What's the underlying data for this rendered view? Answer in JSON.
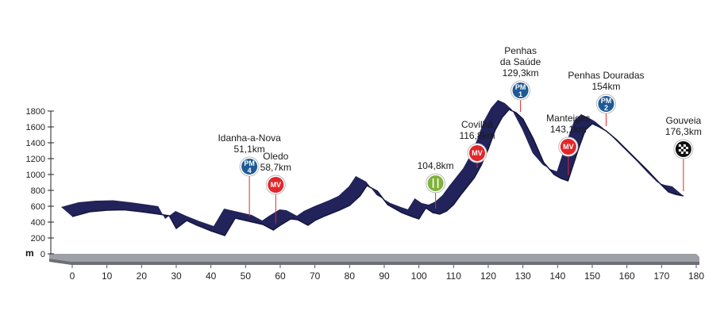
{
  "chart_data": {
    "type": "area",
    "title": "",
    "xlabel": "",
    "ylabel": "m",
    "xlim": [
      0,
      180
    ],
    "ylim": [
      0,
      1800
    ],
    "xticks": [
      "0",
      "10",
      "20",
      "30",
      "40",
      "50",
      "60",
      "70",
      "80",
      "90",
      "100",
      "110",
      "120",
      "130",
      "140",
      "150",
      "160",
      "170",
      "180"
    ],
    "yticks": [
      "0",
      "200",
      "400",
      "600",
      "800",
      "1000",
      "1200",
      "1400",
      "1600",
      "1800"
    ],
    "colors": {
      "profile": "#22235a",
      "profile_dark": "#14153c",
      "base_top": "#9ea0a7",
      "base_side": "#6d6e76",
      "mv": "#e3262b",
      "pm": "#1f5a95",
      "feed": "#80b23a"
    },
    "series": [
      {
        "x": [
          0,
          5,
          10,
          15,
          20,
          25,
          28,
          30,
          33,
          36,
          40,
          44,
          47,
          50,
          52,
          55,
          58,
          60,
          63,
          65,
          68,
          70,
          73,
          77,
          80,
          83,
          85,
          88,
          91,
          95,
          98,
          100,
          102,
          104,
          106,
          108,
          110,
          112,
          114,
          116,
          118,
          120,
          122,
          124,
          126,
          128,
          130,
          133,
          136,
          139,
          141,
          143,
          146,
          148,
          150,
          152,
          154,
          157,
          160,
          163,
          166,
          169,
          172,
          174,
          176.3
        ],
        "y": [
          470,
          530,
          550,
          555,
          530,
          500,
          480,
          320,
          420,
          360,
          290,
          230,
          450,
          420,
          400,
          370,
          300,
          360,
          440,
          430,
          360,
          420,
          480,
          550,
          610,
          730,
          860,
          790,
          620,
          520,
          470,
          440,
          580,
          520,
          500,
          540,
          620,
          740,
          850,
          960,
          1120,
          1320,
          1560,
          1720,
          1820,
          1780,
          1700,
          1450,
          1150,
          1000,
          950,
          920,
          1320,
          1560,
          1640,
          1600,
          1550,
          1440,
          1310,
          1180,
          1050,
          910,
          780,
          750,
          730
        ]
      }
    ],
    "annotations": [
      {
        "type": "pm",
        "badge_top": "PM",
        "badge_num": "4",
        "x": 51.1,
        "lines": [
          "Idanha-a-Nova",
          "51,1km"
        ]
      },
      {
        "type": "mv",
        "badge_top": "MV",
        "x": 58.7,
        "lines": [
          "Oledo",
          "58,7km"
        ]
      },
      {
        "type": "feed",
        "x": 104.8,
        "lines": [
          "104,8km"
        ]
      },
      {
        "type": "mv",
        "badge_top": "MV",
        "x": 116.8,
        "lines": [
          "Covilhã",
          "116,8km"
        ]
      },
      {
        "type": "pm",
        "badge_top": "PM",
        "badge_num": "1",
        "x": 129.3,
        "lines": [
          "Penhas",
          "da Saúde",
          "129,3km"
        ]
      },
      {
        "type": "mv",
        "badge_top": "MV",
        "x": 143.1,
        "lines": [
          "Manteigas",
          "143,1km"
        ]
      },
      {
        "type": "pm",
        "badge_top": "PM",
        "badge_num": "2",
        "x": 154,
        "lines": [
          "Penhas Douradas",
          "154km"
        ]
      },
      {
        "type": "finish",
        "x": 176.3,
        "lines": [
          "Gouveia",
          "176,3km"
        ]
      }
    ]
  }
}
